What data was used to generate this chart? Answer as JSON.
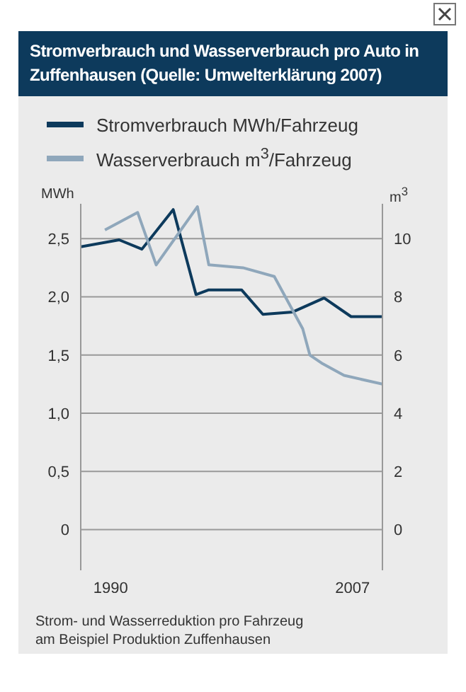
{
  "chart_data": {
    "type": "line",
    "title": "Stromverbrauch und Wasserverbrauch pro Auto in Zuffenhausen (Quelle: Umwelterklärung 2007)",
    "ylabel": "MWh",
    "y2label": "m$^{3}$",
    "annotations": [
      "Strom- und Wasserreduktion pro Fahrzeug am Beispiel Produktion Zuffenhausen"
    ],
    "xlim": [
      1987.9,
      2009.1
    ],
    "xticks": [
      1990,
      2007
    ],
    "ylim": [
      -0.35,
      2.8
    ],
    "yticks": [
      0,
      {
        "value": 0.5,
        "label": "0,5"
      },
      {
        "value": 1,
        "label": "1,0"
      },
      {
        "value": 1.5,
        "label": "1,5"
      },
      {
        "value": 2,
        "label": "2,0"
      },
      {
        "value": 2.5,
        "label": "2,5"
      }
    ],
    "y2lim": [
      -1.4,
      11.2
    ],
    "y2ticks": [
      0,
      2,
      4,
      6,
      8,
      10
    ],
    "grid": "y",
    "legend": "top",
    "marker": "none",
    "line_style": "solid",
    "series": [
      {
        "name": "Stromverbrauch MWh/Fahrzeug",
        "color": "#0d3a5c",
        "x": [
          1987.9,
          1990.6,
          1992.2,
          1994.4,
          1996,
          1996.9,
          1999.2,
          2000.7,
          2002.8,
          2005,
          2006.9,
          2009.1
        ],
        "values": [
          2.43,
          2.49,
          2.41,
          2.75,
          2.02,
          2.06,
          2.06,
          1.85,
          1.87,
          1.99,
          1.83,
          1.83
        ]
      },
      {
        "name": "Wasserverbrauch m$^{3}$/Fahrzeug",
        "color": "#8fa7bb",
        "axis": "y2",
        "x": [
          1989.6,
          1991.9,
          1993.2,
          1996.1,
          1996.9,
          1999.3,
          2001.5,
          2002.5,
          2003.5,
          2004,
          2004.9,
          2006.4,
          2009.1
        ],
        "values": [
          10.3,
          10.9,
          9.1,
          11.1,
          9.1,
          9.0,
          8.7,
          7.8,
          6.9,
          6.0,
          5.7,
          5.3,
          5.0
        ]
      }
    ]
  }
}
